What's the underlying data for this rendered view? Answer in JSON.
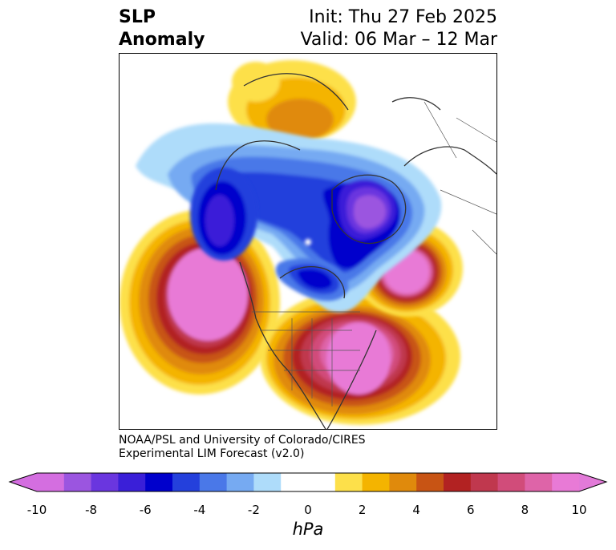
{
  "title": {
    "left_line1": "SLP",
    "left_line2": "Anomaly",
    "right_line1": "Init: Thu 27 Feb 2025",
    "right_line2": "Valid: 06 Mar – 12 Mar"
  },
  "credit": {
    "line1": "NOAA/PSL and University of Colorado/CIRES",
    "line2": "Experimental LIM Forecast (v2.0)"
  },
  "colorbar": {
    "unit": "hPa",
    "tick_labels": [
      "-10",
      "-8",
      "-6",
      "-4",
      "-2",
      "0",
      "2",
      "4",
      "6",
      "8",
      "10"
    ],
    "under_color": "#d46ee0",
    "over_color": "#e27ad8",
    "colors": [
      "#d46ee0",
      "#9b55e0",
      "#6a36df",
      "#3a1fd8",
      "#0000cc",
      "#2440dc",
      "#4a78e8",
      "#76aaf2",
      "#aedcfa",
      "#ffffff",
      "#ffffff",
      "#fde04a",
      "#f4b400",
      "#e08a0c",
      "#c85414",
      "#b22222",
      "#c0384e",
      "#d14c7a",
      "#de64a8",
      "#e87ad6"
    ]
  },
  "map": {
    "projection": "polar-stereographic",
    "region": "North America / Arctic",
    "features": [
      {
        "name": "positive-anomaly-northeast-pacific",
        "sign": "positive",
        "peak_hpa": 10
      },
      {
        "name": "positive-anomaly-eastern-us",
        "sign": "positive",
        "peak_hpa": 10
      },
      {
        "name": "positive-anomaly-north-atlantic",
        "sign": "positive",
        "peak_hpa": 10
      },
      {
        "name": "positive-anomaly-north-pacific-arctic",
        "sign": "positive",
        "peak_hpa": 4
      },
      {
        "name": "negative-anomaly-arctic-greenland",
        "sign": "negative",
        "peak_hpa": -10
      },
      {
        "name": "negative-anomaly-alaska-bering",
        "sign": "negative",
        "peak_hpa": -6
      },
      {
        "name": "negative-anomaly-hudson-bay",
        "sign": "negative",
        "peak_hpa": -6
      }
    ]
  }
}
